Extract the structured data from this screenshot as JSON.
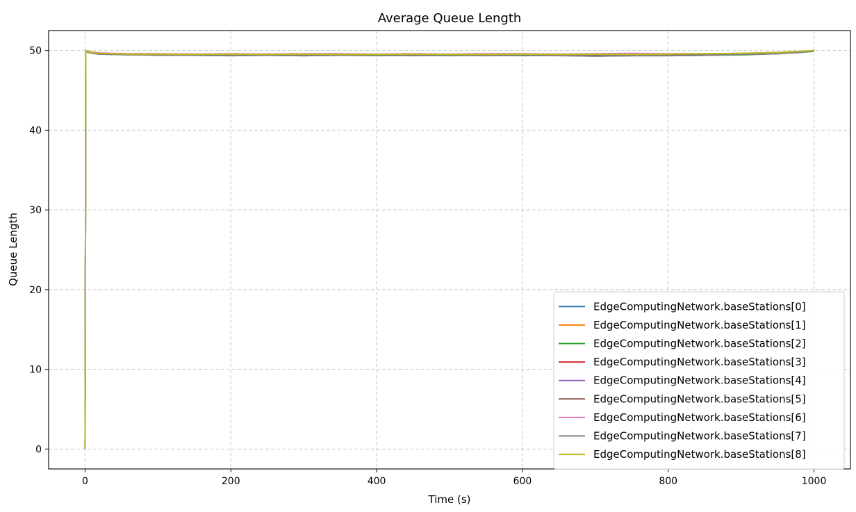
{
  "chart_data": {
    "type": "line",
    "title": "Average Queue Length",
    "xlabel": "Time (s)",
    "ylabel": "Queue Length",
    "xlim": [
      -50,
      1050
    ],
    "ylim": [
      -2.5,
      52.5
    ],
    "xticks": [
      0,
      200,
      400,
      600,
      800,
      1000
    ],
    "yticks": [
      0,
      10,
      20,
      30,
      40,
      50
    ],
    "grid": true,
    "legend_position": "bottom-right",
    "x": [
      0,
      1,
      2,
      5,
      10,
      20,
      40,
      60,
      80,
      100,
      150,
      200,
      250,
      300,
      350,
      400,
      450,
      500,
      550,
      600,
      650,
      700,
      750,
      800,
      850,
      900,
      950,
      980,
      1000
    ],
    "series": [
      {
        "name": "EdgeComputingNetwork.baseStations[0]",
        "color": "#1f77b4",
        "values": [
          0,
          50.0,
          49.9,
          49.85,
          49.75,
          49.6,
          49.55,
          49.5,
          49.5,
          49.5,
          49.45,
          49.5,
          49.45,
          49.45,
          49.45,
          49.4,
          49.45,
          49.4,
          49.45,
          49.4,
          49.45,
          49.4,
          49.45,
          49.45,
          49.5,
          49.55,
          49.65,
          49.8,
          49.95
        ]
      },
      {
        "name": "EdgeComputingNetwork.baseStations[1]",
        "color": "#ff7f0e",
        "values": [
          0,
          49.95,
          49.9,
          49.8,
          49.7,
          49.6,
          49.55,
          49.5,
          49.55,
          49.5,
          49.5,
          49.45,
          49.5,
          49.45,
          49.5,
          49.45,
          49.5,
          49.45,
          49.5,
          49.45,
          49.5,
          49.45,
          49.5,
          49.45,
          49.5,
          49.6,
          49.7,
          49.85,
          49.95
        ]
      },
      {
        "name": "EdgeComputingNetwork.baseStations[2]",
        "color": "#2ca02c",
        "values": [
          0,
          49.9,
          49.85,
          49.75,
          49.65,
          49.55,
          49.5,
          49.5,
          49.45,
          49.45,
          49.4,
          49.35,
          49.4,
          49.35,
          49.4,
          49.35,
          49.4,
          49.35,
          49.4,
          49.35,
          49.4,
          49.3,
          49.35,
          49.35,
          49.4,
          49.45,
          49.6,
          49.75,
          49.9
        ]
      },
      {
        "name": "EdgeComputingNetwork.baseStations[3]",
        "color": "#d62728",
        "values": [
          0,
          50.0,
          49.9,
          49.8,
          49.7,
          49.6,
          49.55,
          49.5,
          49.5,
          49.5,
          49.5,
          49.45,
          49.5,
          49.5,
          49.45,
          49.5,
          49.45,
          49.5,
          49.45,
          49.5,
          49.45,
          49.5,
          49.45,
          49.5,
          49.45,
          49.55,
          49.65,
          49.8,
          49.95
        ]
      },
      {
        "name": "EdgeComputingNetwork.baseStations[4]",
        "color": "#9467bd",
        "values": [
          0,
          49.95,
          49.9,
          49.8,
          49.7,
          49.6,
          49.55,
          49.5,
          49.5,
          49.45,
          49.5,
          49.45,
          49.45,
          49.5,
          49.45,
          49.45,
          49.5,
          49.45,
          49.45,
          49.5,
          49.45,
          49.45,
          49.5,
          49.45,
          49.5,
          49.55,
          49.6,
          49.8,
          49.95
        ]
      },
      {
        "name": "EdgeComputingNetwork.baseStations[5]",
        "color": "#8c564b",
        "values": [
          0,
          50.0,
          49.95,
          49.85,
          49.75,
          49.65,
          49.6,
          49.55,
          49.55,
          49.5,
          49.5,
          49.5,
          49.55,
          49.5,
          49.5,
          49.5,
          49.55,
          49.5,
          49.5,
          49.5,
          49.55,
          49.5,
          49.5,
          49.5,
          49.55,
          49.6,
          49.7,
          49.85,
          50.0
        ]
      },
      {
        "name": "EdgeComputingNetwork.baseStations[6]",
        "color": "#e377c2",
        "values": [
          0,
          50.0,
          49.95,
          49.9,
          49.8,
          49.7,
          49.65,
          49.6,
          49.6,
          49.6,
          49.55,
          49.6,
          49.55,
          49.6,
          49.6,
          49.55,
          49.6,
          49.55,
          49.6,
          49.6,
          49.55,
          49.6,
          49.65,
          49.6,
          49.6,
          49.65,
          49.75,
          49.85,
          50.0
        ]
      },
      {
        "name": "EdgeComputingNetwork.baseStations[7]",
        "color": "#7f7f7f",
        "values": [
          0,
          49.95,
          49.85,
          49.75,
          49.65,
          49.55,
          49.5,
          49.45,
          49.45,
          49.4,
          49.4,
          49.35,
          49.4,
          49.35,
          49.4,
          49.4,
          49.35,
          49.4,
          49.35,
          49.4,
          49.35,
          49.3,
          49.35,
          49.35,
          49.4,
          49.5,
          49.6,
          49.75,
          49.95
        ]
      },
      {
        "name": "EdgeComputingNetwork.baseStations[8]",
        "color": "#bcbd22",
        "values": [
          0,
          50.0,
          49.95,
          49.85,
          49.75,
          49.65,
          49.6,
          49.55,
          49.55,
          49.55,
          49.5,
          49.55,
          49.5,
          49.55,
          49.5,
          49.5,
          49.55,
          49.5,
          49.5,
          49.55,
          49.5,
          49.55,
          49.5,
          49.55,
          49.6,
          49.65,
          49.75,
          49.9,
          50.0
        ]
      }
    ]
  }
}
